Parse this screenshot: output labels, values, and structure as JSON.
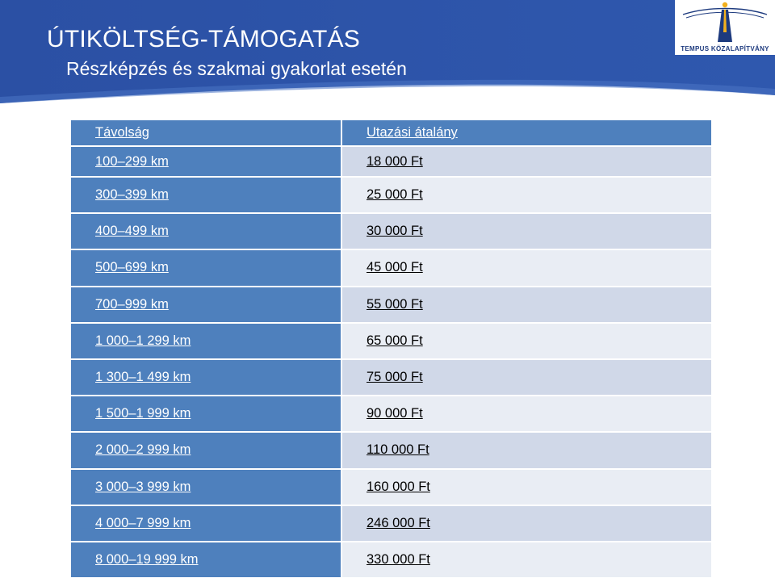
{
  "header": {
    "title": "ÚTIKÖLTSÉG-TÁMOGATÁS",
    "subtitle": "Részképzés és szakmai gyakorlat esetén",
    "logo_text": "TEMPUS KÖZALAPÍTVÁNY",
    "colors": {
      "banner": "#2f54a8",
      "banner_light": "#3b64b8",
      "accent": "#f2b01e"
    }
  },
  "table": {
    "headers": {
      "distance": "Távolság",
      "allowance": "Utazási átalány"
    },
    "rows": [
      {
        "distance": "100–299 km",
        "allowance": "18 000 Ft"
      },
      {
        "distance": "300–399 km",
        "allowance": "25 000 Ft"
      },
      {
        "distance": "400–499 km",
        "allowance": "30 000 Ft"
      },
      {
        "distance": "500–699 km",
        "allowance": "45 000 Ft"
      },
      {
        "distance": "700–999 km",
        "allowance": "55 000 Ft"
      },
      {
        "distance": "1 000–1 299 km",
        "allowance": "65 000 Ft"
      },
      {
        "distance": "1 300–1 499 km",
        "allowance": "75 000 Ft"
      },
      {
        "distance": "1 500–1 999 km",
        "allowance": "90 000 Ft"
      },
      {
        "distance": "2 000–2 999 km",
        "allowance": "110 000 Ft"
      },
      {
        "distance": "3 000–3 999 km",
        "allowance": "160 000 Ft"
      },
      {
        "distance": "4 000–7 999 km",
        "allowance": "246 000 Ft"
      },
      {
        "distance": "8 000–19 999 km",
        "allowance": "330 000 Ft"
      }
    ]
  }
}
